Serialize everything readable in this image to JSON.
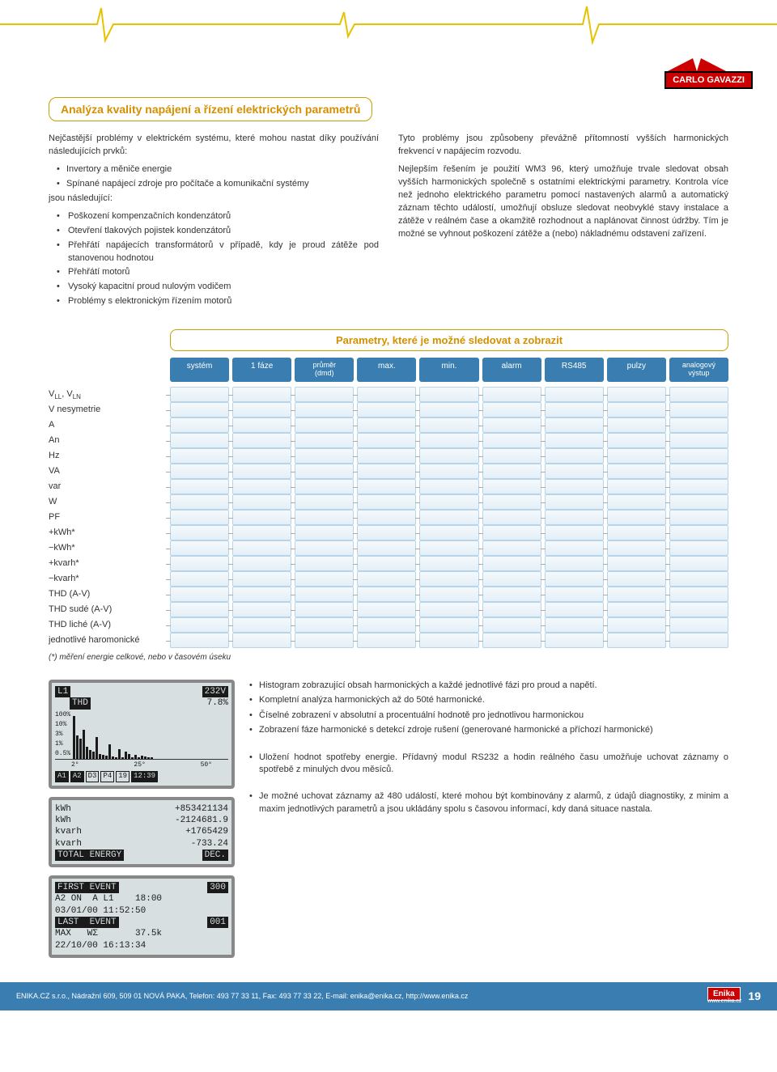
{
  "brand": "CARLO GAVAZZI",
  "title": "Analýza kvality napájení a řízení elektrických parametrů",
  "intro": "Nejčastější problémy v elektrickém systému, které mohou nastat díky používání následujících prvků:",
  "causes": [
    "Invertory a měniče energie",
    "Spínané napájecí zdroje pro počítače a komunikační systémy"
  ],
  "effects_intro": "jsou následující:",
  "effects": [
    "Poškození kompenzačních kondenzátorů",
    "Otevření tlakových pojistek kondenzátorů",
    "Přehřátí napájecích transformátorů v případě, kdy je proud zátěže pod stanovenou hodnotou",
    "Přehřátí motorů",
    "Vysoký kapacitní proud nulovým vodičem",
    "Problémy s elektronickým řízením motorů"
  ],
  "right_p1": "Tyto problémy jsou způsobeny převážně přítomností vyšších harmonických frekvencí v napájecím rozvodu.",
  "right_p2": "Nejlepším řešením je použití WM3 96, který umožňuje trvale sledovat obsah vyšších harmonických společně s ostatními elektrickými parametry. Kontrola více než jednoho elektrického parametru pomocí nastavených alarmů a automatický záznam těchto událostí, umožňují obsluze sledovat neobvyklé stavy instalace a zátěže v reálném čase a okamžitě rozhodnout a naplánovat činnost údržby. Tím je možné se vyhnout poškození zátěže a (nebo) nákladnému odstavení zařízení.",
  "param_title": "Parametry, které je možné sledovat a zobrazit",
  "headers": [
    "systém",
    "1 fáze",
    "průměr\n(dmd)",
    "max.",
    "min.",
    "alarm",
    "RS485",
    "pulzy",
    "analogový\nvýstup"
  ],
  "rows": [
    "V<sub>LL</sub>, V<sub>LN</sub>",
    "V nesymetrie",
    "A",
    "An",
    "Hz",
    "VA",
    "var",
    "W",
    "PF",
    "+kWh*",
    "−kWh*",
    "+kvarh*",
    "−kvarh*",
    "THD (A-V)",
    "THD sudé (A-V)",
    "THD liché (A-V)",
    "jednotlivé haromonické"
  ],
  "footnote": "(*) měření energie celkové, nebo v časovém úseku",
  "lcd1": {
    "line1_label": "L1",
    "line1_val": "232V",
    "line2_label": "THD",
    "line2_val": "7.8%",
    "y": [
      "100%",
      "10%",
      "3%",
      "1%",
      "0.5%"
    ],
    "x": [
      "2°",
      "25°",
      "50°"
    ],
    "bars": [
      90,
      48,
      42,
      60,
      25,
      18,
      14,
      45,
      10,
      8,
      6,
      30,
      4,
      3,
      20,
      2,
      15,
      10,
      2,
      8,
      2,
      6,
      4,
      2,
      3
    ],
    "badges": [
      "A1",
      "A2",
      "D3",
      "P4",
      "19",
      "12:39"
    ]
  },
  "lcd2": {
    "r1": [
      "kWh",
      "+853421134"
    ],
    "r2": [
      "kWh",
      "-2124681.9"
    ],
    "r3": [
      "kvarh",
      "+1765429"
    ],
    "r4": [
      "kvarh",
      "-733.24"
    ],
    "foot_l": "TOTAL ENERGY",
    "foot_r": "DEC."
  },
  "lcd3": {
    "r1_l": "FIRST EVENT",
    "r1_r": "300",
    "r2": "A2 ON  A L1    18:00",
    "r3": "03/01/00 11:52:50",
    "r4_l": "LAST  EVENT",
    "r4_r": "001",
    "r5": "MAX   WΣ       37.5k",
    "r6": "22/10/00 16:13:34"
  },
  "desc1": [
    "Histogram zobrazující obsah harmonických a každé jednotlivé fázi pro proud a napětí.",
    "Kompletní analýza harmonických až do 50té harmonické.",
    "Číselné zobrazení v absolutní a procentuální hodnotě pro jednotlivou harmonickou",
    "Zobrazení fáze harmonické s detekcí zdroje rušení (generované harmonické a příchozí harmonické)"
  ],
  "desc2": [
    "Uložení hodnot spotřeby energie. Přídavný modul RS232 a hodin reálného času umožňuje uchovat záznamy o spotřebě z minulých dvou měsíců."
  ],
  "desc3": [
    "Je možné uchovat záznamy až 480 událostí, které mohou být kombinovány z alarmů, z údajů diagnostiky, z minim a maxim jednotlivých parametrů a jsou ukládány spolu s časovou informací, kdy daná situace nastala."
  ],
  "footer_text": "ENIKA.CZ s.r.o., Nádražní 609, 509 01 NOVÁ PAKA, Telefon: 493 77 33 11, Fax: 493 77 33 22, E-mail: enika@enika.cz, http://www.enika.cz",
  "footer_logo": "Enika",
  "footer_sub": "www.enika.cz",
  "page_num": "19",
  "colors": {
    "accent": "#d49000",
    "border": "#c4a300",
    "table_header": "#3a7db0",
    "cell_border": "#b8d4e8",
    "brand_red": "#c00"
  }
}
